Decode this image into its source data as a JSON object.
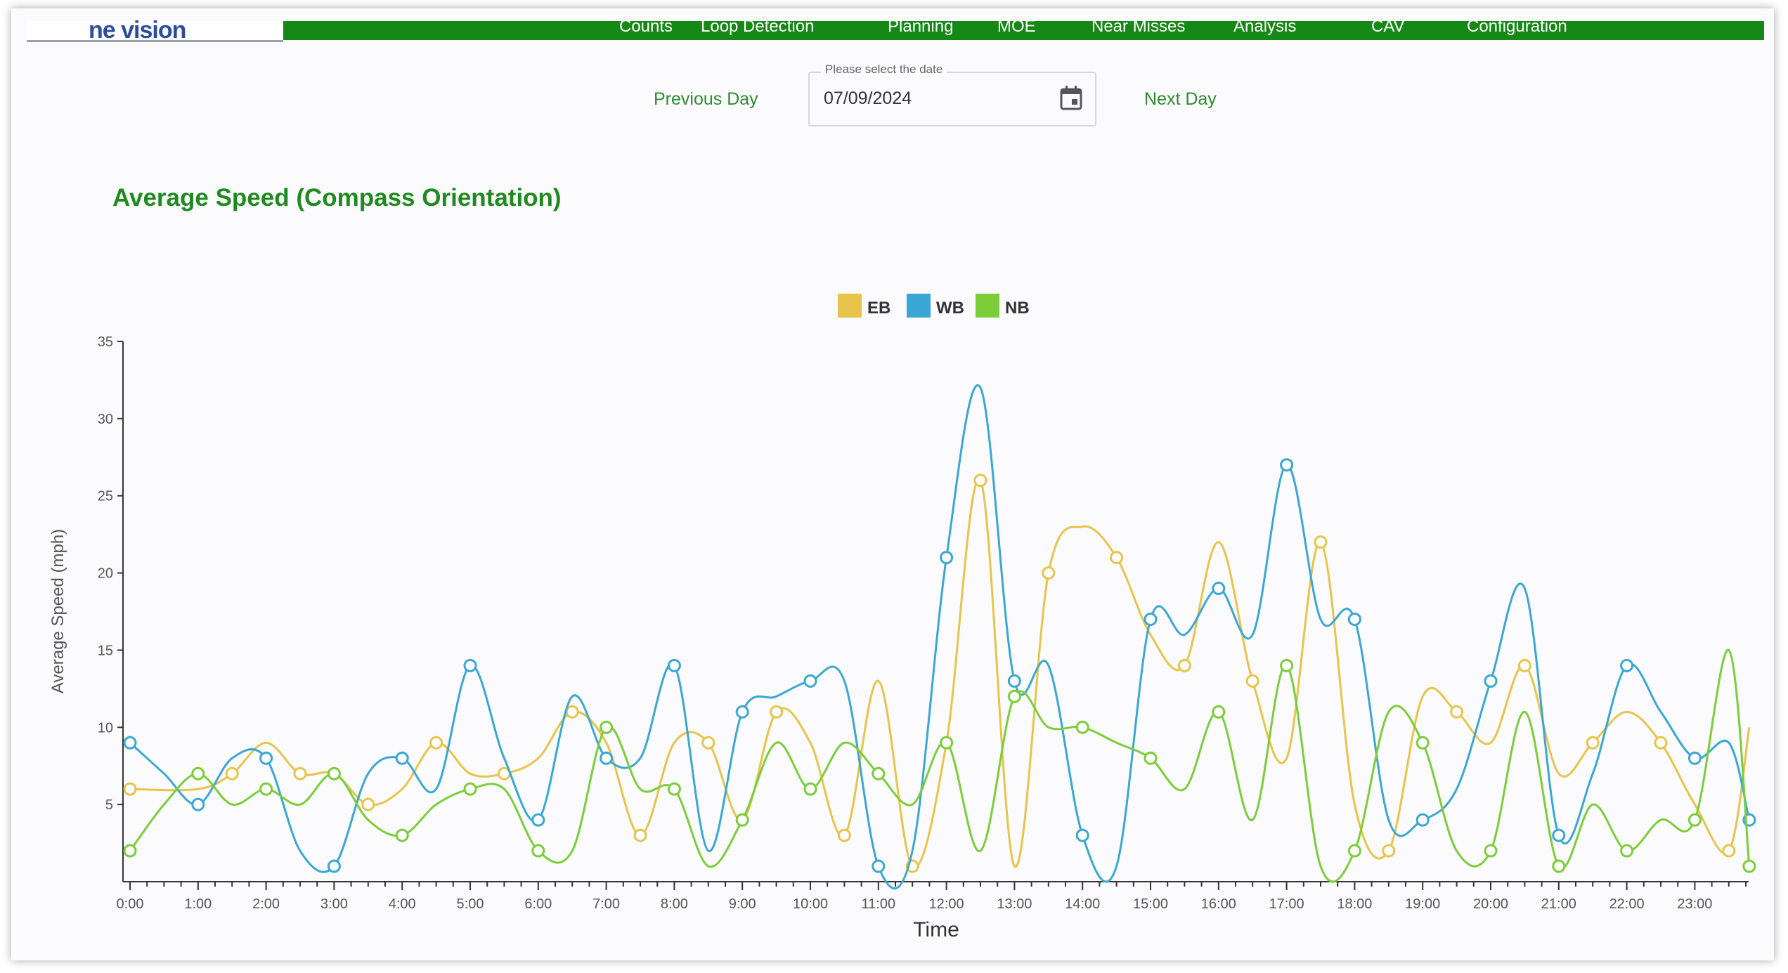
{
  "logo": {
    "text": "ne vision"
  },
  "nav": {
    "items": [
      "Counts",
      "Loop Detection",
      "Planning",
      "MOE",
      "Near Misses",
      "Analysis",
      "CAV",
      "Configuration"
    ]
  },
  "date_picker": {
    "prev_label": "Previous Day",
    "next_label": "Next Day",
    "label": "Please select the date",
    "value": "07/09/2024",
    "icon": "calendar-icon"
  },
  "colors": {
    "EB": "#e8c44a",
    "WB": "#3aa7d4",
    "NB": "#7ccd3a",
    "accent": "#168816"
  },
  "chart_data": {
    "type": "line",
    "title": "Average Speed (Compass Orientation)",
    "xlabel": "Time",
    "ylabel": "Average Speed (mph)",
    "ylim": [
      0,
      35
    ],
    "yticks": [
      5,
      10,
      15,
      20,
      25,
      30,
      35
    ],
    "xlim": [
      0,
      24
    ],
    "xticks": [
      "0:00",
      "1:00",
      "2:00",
      "3:00",
      "4:00",
      "5:00",
      "6:00",
      "7:00",
      "8:00",
      "9:00",
      "10:00",
      "11:00",
      "12:00",
      "13:00",
      "14:00",
      "15:00",
      "16:00",
      "17:00",
      "18:00",
      "19:00",
      "20:00",
      "21:00",
      "22:00",
      "23:00"
    ],
    "legend": "top-center",
    "series": [
      {
        "name": "EB",
        "color": "#e8c44a",
        "x": [
          0,
          1,
          1.5,
          2,
          2.5,
          3,
          3.5,
          4,
          4.5,
          5,
          5.5,
          6,
          6.5,
          7,
          7.5,
          8,
          8.5,
          9,
          9.5,
          10,
          10.5,
          11,
          11.5,
          12,
          12.5,
          13,
          13.5,
          14,
          14.5,
          15,
          15.5,
          16,
          16.5,
          17,
          17.5,
          18,
          18.5,
          19,
          19.5,
          20,
          20.5,
          21,
          21.5,
          22,
          22.5,
          23,
          23.5,
          23.8
        ],
        "y": [
          6,
          6,
          7,
          9,
          7,
          7,
          5,
          6,
          9,
          7,
          7,
          8,
          11,
          9,
          3,
          9,
          9,
          4,
          11,
          9,
          3,
          13,
          1,
          9,
          26,
          1,
          20,
          23,
          21,
          16,
          14,
          22,
          13,
          8,
          22,
          5,
          2,
          12,
          11,
          9,
          14,
          7,
          9,
          11,
          9,
          5,
          2,
          10
        ]
      },
      {
        "name": "WB",
        "color": "#3aa7d4",
        "x": [
          0,
          0.5,
          1,
          1.5,
          2,
          2.5,
          3,
          3.5,
          4,
          4.5,
          5,
          5.5,
          6,
          6.5,
          7,
          7.5,
          8,
          8.5,
          9,
          9.5,
          10,
          10.5,
          11,
          11.5,
          12,
          12.5,
          13,
          13.5,
          14,
          14.5,
          15,
          15.5,
          16,
          16.5,
          17,
          17.5,
          18,
          18.5,
          19,
          19.5,
          20,
          20.5,
          21,
          21.5,
          22,
          22.5,
          23,
          23.5,
          23.8
        ],
        "y": [
          9,
          7,
          5,
          8,
          8,
          2,
          1,
          7,
          8,
          6,
          14,
          8,
          4,
          12,
          8,
          8,
          14,
          2,
          11,
          12,
          13,
          13,
          1,
          2,
          21,
          32,
          13,
          14,
          3,
          1,
          17,
          16,
          19,
          16,
          27,
          17,
          17,
          4,
          4,
          6,
          13,
          19,
          3,
          7,
          14,
          11,
          8,
          9,
          4
        ]
      },
      {
        "name": "NB",
        "color": "#7ccd3a",
        "x": [
          0,
          0.5,
          1,
          1.5,
          2,
          2.5,
          3,
          3.5,
          4,
          4.5,
          5,
          5.5,
          6,
          6.5,
          7,
          7.5,
          8,
          8.5,
          9,
          9.5,
          10,
          10.5,
          11,
          11.5,
          12,
          12.5,
          13,
          13.5,
          14,
          14.5,
          15,
          15.5,
          16,
          16.5,
          17,
          17.5,
          18,
          18.5,
          19,
          19.5,
          20,
          20.5,
          21,
          21.5,
          22,
          22.5,
          23,
          23.5,
          23.8
        ],
        "y": [
          2,
          5,
          7,
          5,
          6,
          5,
          7,
          4,
          3,
          5,
          6,
          6,
          2,
          2,
          10,
          6,
          6,
          1,
          4,
          9,
          6,
          9,
          7,
          5,
          9,
          2,
          12,
          10,
          10,
          9,
          8,
          6,
          11,
          4,
          14,
          1,
          2,
          11,
          9,
          2,
          2,
          11,
          1,
          5,
          2,
          4,
          4,
          15,
          1
        ]
      }
    ]
  }
}
